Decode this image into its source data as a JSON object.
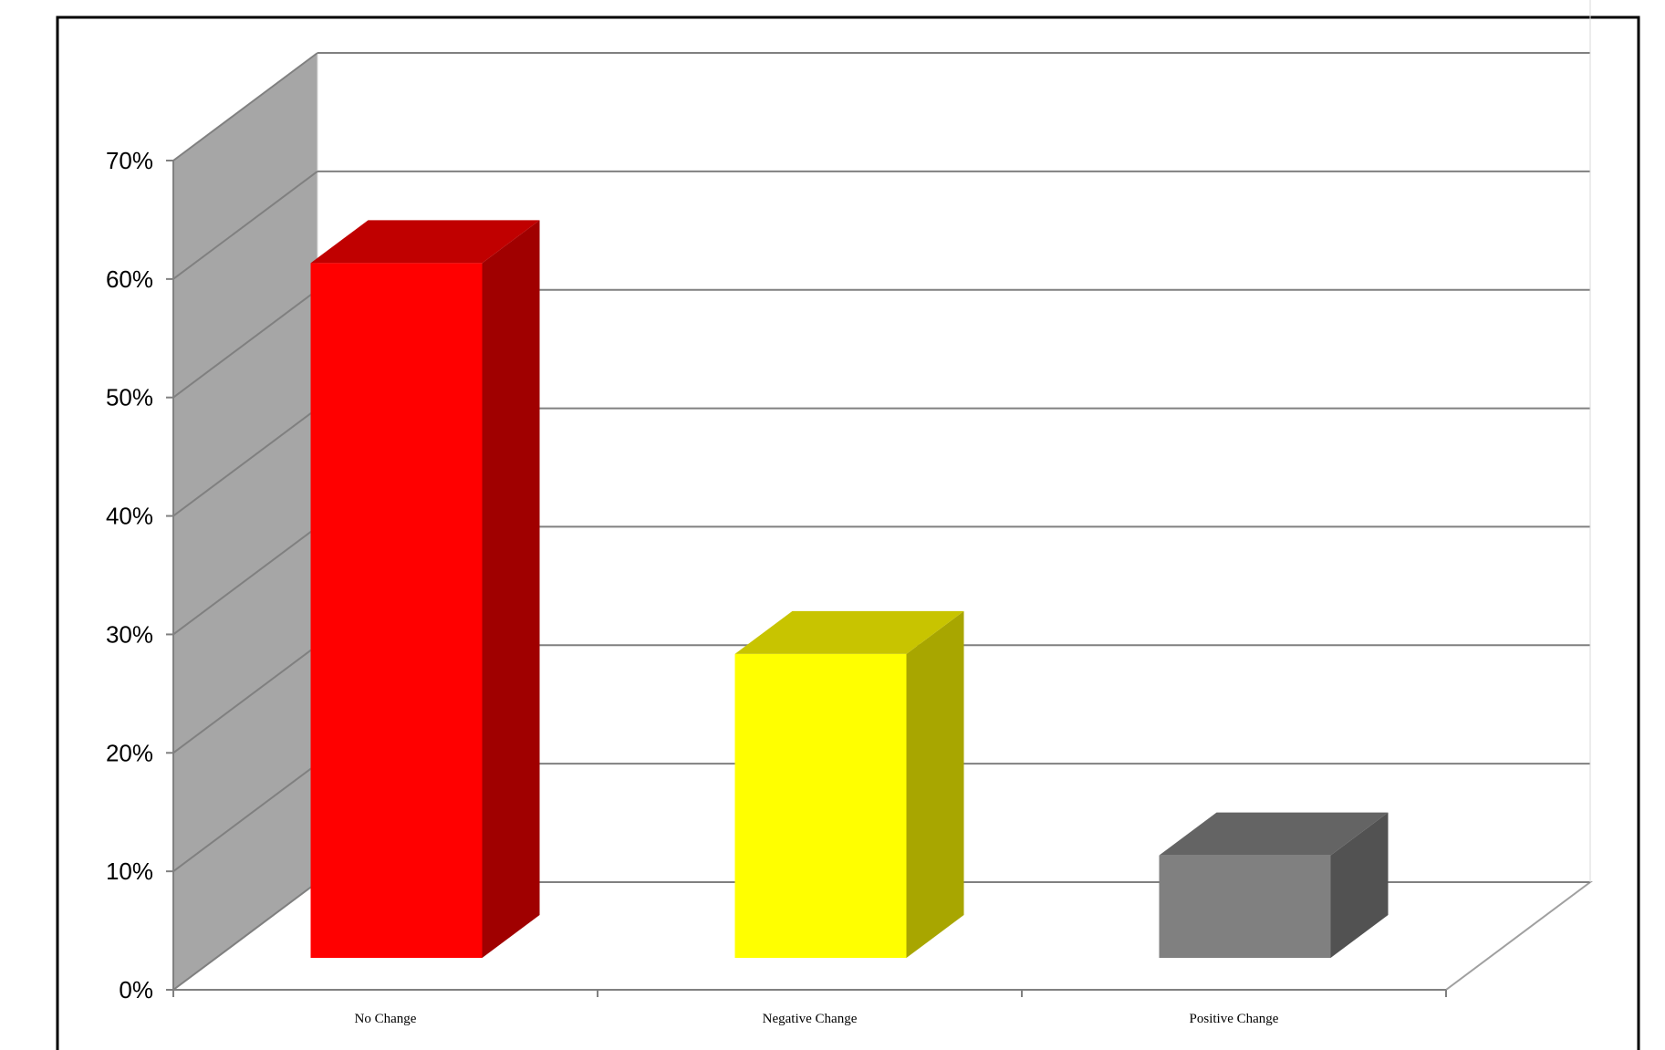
{
  "chart_data": {
    "type": "bar",
    "style": "3d-column",
    "title": "",
    "xlabel": "",
    "ylabel": "",
    "categories": [
      "No Change",
      "Negative Change",
      "Positive Change"
    ],
    "values": [
      61.5,
      28.5,
      11.5
    ],
    "value_format": "percent",
    "ylim": [
      0,
      70
    ],
    "yticks": [
      0,
      10,
      20,
      30,
      40,
      50,
      60,
      70
    ],
    "ytick_labels": [
      "0%",
      "10%",
      "20%",
      "30%",
      "40%",
      "50%",
      "60%",
      "70%"
    ],
    "grid": true,
    "legend": "none",
    "colors": {
      "bars": [
        "#ff0000",
        "#ffff00",
        "#808080"
      ],
      "bar_tops": [
        "#c00000",
        "#c8c400",
        "#646464"
      ],
      "bar_sides": [
        "#a00000",
        "#a8a600",
        "#525252"
      ],
      "back_wall": "#ffffff",
      "side_wall": "#a6a6a6",
      "gridlines": "#808080",
      "frame": "#000000"
    }
  }
}
